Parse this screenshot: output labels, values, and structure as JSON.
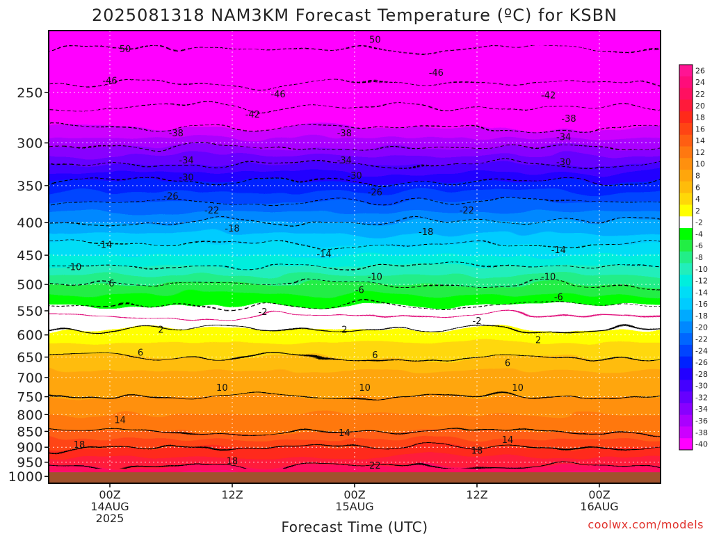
{
  "chart_data": {
    "type": "heatmap",
    "title": "2025081318 NAM3KM Forecast Temperature (ºC) for KSBN",
    "xlabel": "Forecast Time (UTC)",
    "ylabel": "",
    "credit": "coolwx.com/models",
    "y_axis": {
      "scale": "log-pressure",
      "range": [
        200,
        1025
      ],
      "ticks": [
        250,
        300,
        350,
        400,
        450,
        500,
        550,
        600,
        650,
        700,
        750,
        800,
        850,
        900,
        950,
        1000
      ]
    },
    "x_axis": {
      "range_hours": [
        -6,
        54
      ],
      "ticks": [
        {
          "hour": 0,
          "lines": [
            "00Z",
            "14AUG",
            "2025"
          ]
        },
        {
          "hour": 12,
          "lines": [
            "12Z"
          ]
        },
        {
          "hour": 24,
          "lines": [
            "00Z",
            "15AUG"
          ]
        },
        {
          "hour": 36,
          "lines": [
            "12Z"
          ]
        },
        {
          "hour": 48,
          "lines": [
            "00Z",
            "16AUG"
          ]
        }
      ]
    },
    "grid": true,
    "ground_level_hpa": 985,
    "colorbar": {
      "levels": [
        26,
        24,
        22,
        20,
        18,
        16,
        14,
        12,
        10,
        8,
        6,
        4,
        2,
        -2,
        -4,
        -6,
        -8,
        -10,
        -12,
        -14,
        -16,
        -18,
        -20,
        -22,
        -24,
        -26,
        -28,
        -30,
        -32,
        -34,
        -36,
        -38,
        -40
      ],
      "colors": [
        "#ff1493",
        "#ff0d7a",
        "#ff1060",
        "#ff1a3a",
        "#ff2a1a",
        "#ff4414",
        "#ff5e12",
        "#ff7810",
        "#ff900e",
        "#ffa60c",
        "#ffbc0a",
        "#ffd808",
        "#ffff00",
        "#ffffff",
        "#00ff00",
        "#22ee44",
        "#22ee88",
        "#22eebb",
        "#00eedd",
        "#00ddf6",
        "#00ccff",
        "#00aaff",
        "#0088ff",
        "#0066ff",
        "#0044ff",
        "#0022ff",
        "#2200ff",
        "#4400ff",
        "#6600ff",
        "#8800ff",
        "#aa00ff",
        "#cc00ff",
        "#ff00ff"
      ]
    },
    "profile": [
      {
        "pressure": 990,
        "temp": 24
      },
      {
        "pressure": 950,
        "temp": 21
      },
      {
        "pressure": 900,
        "temp": 18
      },
      {
        "pressure": 850,
        "temp": 14
      },
      {
        "pressure": 800,
        "temp": 12
      },
      {
        "pressure": 750,
        "temp": 10
      },
      {
        "pressure": 700,
        "temp": 9
      },
      {
        "pressure": 650,
        "temp": 6
      },
      {
        "pressure": 600,
        "temp": 3
      },
      {
        "pressure": 550,
        "temp": -1
      },
      {
        "pressure": 500,
        "temp": -6
      },
      {
        "pressure": 450,
        "temp": -12
      },
      {
        "pressure": 400,
        "temp": -18
      },
      {
        "pressure": 350,
        "temp": -25
      },
      {
        "pressure": 300,
        "temp": -35
      },
      {
        "pressure": 250,
        "temp": -45
      },
      {
        "pressure": 200,
        "temp": -52
      }
    ],
    "contour_labels": [
      {
        "value": "50",
        "hour": 1.5,
        "pressure": 214
      },
      {
        "value": "50",
        "hour": 26,
        "pressure": 207
      },
      {
        "value": "-46",
        "hour": 0,
        "pressure": 240
      },
      {
        "value": "-46",
        "hour": 16.5,
        "pressure": 252
      },
      {
        "value": "-46",
        "hour": 32,
        "pressure": 233
      },
      {
        "value": "-42",
        "hour": 14,
        "pressure": 271
      },
      {
        "value": "-42",
        "hour": 43,
        "pressure": 253
      },
      {
        "value": "-38",
        "hour": 6.5,
        "pressure": 290
      },
      {
        "value": "-38",
        "hour": 23,
        "pressure": 290
      },
      {
        "value": "-38",
        "hour": 45,
        "pressure": 275
      },
      {
        "value": "-34",
        "hour": 7.5,
        "pressure": 320
      },
      {
        "value": "-34",
        "hour": 23,
        "pressure": 320
      },
      {
        "value": "-34",
        "hour": 44.5,
        "pressure": 294
      },
      {
        "value": "-30",
        "hour": 7.5,
        "pressure": 340
      },
      {
        "value": "-30",
        "hour": 24,
        "pressure": 338
      },
      {
        "value": "-30",
        "hour": 44.5,
        "pressure": 322
      },
      {
        "value": "-26",
        "hour": 6,
        "pressure": 364
      },
      {
        "value": "-26",
        "hour": 26,
        "pressure": 359
      },
      {
        "value": "-22",
        "hour": 10,
        "pressure": 383
      },
      {
        "value": "-22",
        "hour": 35,
        "pressure": 383
      },
      {
        "value": "-18",
        "hour": 12,
        "pressure": 409
      },
      {
        "value": "-18",
        "hour": 31,
        "pressure": 414
      },
      {
        "value": "-14",
        "hour": -0.5,
        "pressure": 434
      },
      {
        "value": "-14",
        "hour": 21,
        "pressure": 449
      },
      {
        "value": "-14",
        "hour": 44,
        "pressure": 442
      },
      {
        "value": "-10",
        "hour": -3.5,
        "pressure": 470
      },
      {
        "value": "-10",
        "hour": 26,
        "pressure": 487
      },
      {
        "value": "-10",
        "hour": 43,
        "pressure": 487
      },
      {
        "value": "-6",
        "hour": 0,
        "pressure": 499
      },
      {
        "value": "-6",
        "hour": 24.5,
        "pressure": 511
      },
      {
        "value": "-6",
        "hour": 44,
        "pressure": 524
      },
      {
        "value": "-2",
        "hour": 15,
        "pressure": 553
      },
      {
        "value": "-2",
        "hour": 36,
        "pressure": 571
      },
      {
        "value": "2",
        "hour": 5,
        "pressure": 589
      },
      {
        "value": "2",
        "hour": 23,
        "pressure": 589
      },
      {
        "value": "2",
        "hour": 42,
        "pressure": 612
      },
      {
        "value": "6",
        "hour": 3,
        "pressure": 640
      },
      {
        "value": "6",
        "hour": 26,
        "pressure": 646
      },
      {
        "value": "6",
        "hour": 39,
        "pressure": 665
      },
      {
        "value": "10",
        "hour": 11,
        "pressure": 727
      },
      {
        "value": "10",
        "hour": 25,
        "pressure": 727
      },
      {
        "value": "10",
        "hour": 40,
        "pressure": 727
      },
      {
        "value": "14",
        "hour": 1,
        "pressure": 817
      },
      {
        "value": "14",
        "hour": 23,
        "pressure": 855
      },
      {
        "value": "14",
        "hour": 39,
        "pressure": 877
      },
      {
        "value": "18",
        "hour": -3,
        "pressure": 893
      },
      {
        "value": "18",
        "hour": 12,
        "pressure": 947
      },
      {
        "value": "18",
        "hour": 36,
        "pressure": 912
      },
      {
        "value": "22",
        "hour": 26,
        "pressure": 963
      }
    ]
  }
}
